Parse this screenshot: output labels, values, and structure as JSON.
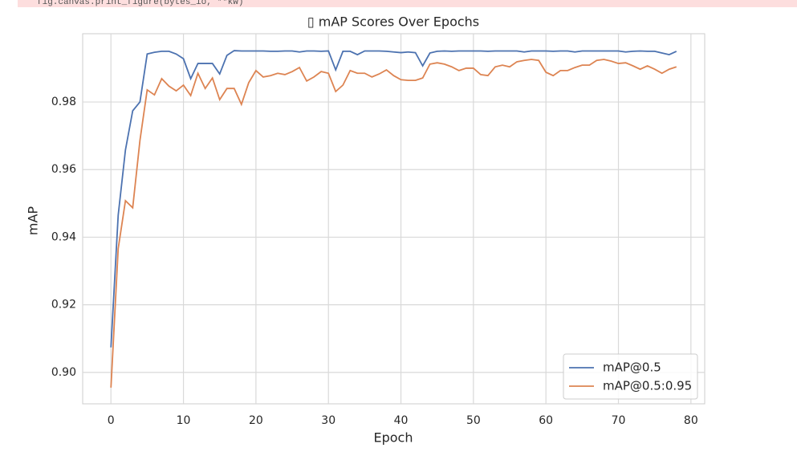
{
  "code_output": "fig.canvas.print_figure(bytes_io, **kw)",
  "chart_data": {
    "type": "line",
    "title": "▯ mAP Scores Over Epochs",
    "x_label": "Epoch",
    "y_label": "mAP",
    "x": [
      0,
      1,
      2,
      3,
      4,
      5,
      6,
      7,
      8,
      9,
      10,
      11,
      12,
      13,
      14,
      15,
      16,
      17,
      18,
      19,
      20,
      21,
      22,
      23,
      24,
      25,
      26,
      27,
      28,
      29,
      30,
      31,
      32,
      33,
      34,
      35,
      36,
      37,
      38,
      39,
      40,
      41,
      42,
      43,
      44,
      45,
      46,
      47,
      48,
      49,
      50,
      51,
      52,
      53,
      54,
      55,
      56,
      57,
      58,
      59,
      60,
      61,
      62,
      63,
      64,
      65,
      66,
      67,
      68,
      69,
      70,
      71,
      72,
      73,
      74,
      75,
      76,
      77,
      78
    ],
    "series": [
      {
        "name": "mAP@0.5",
        "color": "#4c72b0",
        "values": [
          0.9074,
          0.9465,
          0.9658,
          0.9774,
          0.98,
          0.9942,
          0.9947,
          0.995,
          0.995,
          0.9942,
          0.9928,
          0.9869,
          0.9914,
          0.9914,
          0.9914,
          0.9883,
          0.9938,
          0.9952,
          0.9951,
          0.9951,
          0.9951,
          0.9951,
          0.995,
          0.995,
          0.9951,
          0.9951,
          0.9948,
          0.9951,
          0.9951,
          0.995,
          0.9951,
          0.9895,
          0.995,
          0.995,
          0.994,
          0.9951,
          0.9951,
          0.9951,
          0.995,
          0.9948,
          0.9946,
          0.9948,
          0.9946,
          0.9907,
          0.9945,
          0.995,
          0.9951,
          0.995,
          0.9951,
          0.9951,
          0.9951,
          0.9951,
          0.995,
          0.9951,
          0.9951,
          0.9951,
          0.9951,
          0.9948,
          0.9951,
          0.9951,
          0.9951,
          0.995,
          0.9951,
          0.9951,
          0.9948,
          0.9951,
          0.9951,
          0.9951,
          0.9951,
          0.9951,
          0.9951,
          0.9948,
          0.995,
          0.9951,
          0.995,
          0.995,
          0.9945,
          0.994,
          0.995
        ]
      },
      {
        "name": "mAP@0.5:0.95",
        "color": "#dd8452",
        "values": [
          0.8955,
          0.9366,
          0.9508,
          0.9487,
          0.9686,
          0.9836,
          0.9821,
          0.9869,
          0.9847,
          0.9833,
          0.985,
          0.9819,
          0.9885,
          0.984,
          0.9871,
          0.9807,
          0.984,
          0.984,
          0.9793,
          0.9857,
          0.9893,
          0.9874,
          0.9878,
          0.9885,
          0.9881,
          0.989,
          0.9902,
          0.9862,
          0.9874,
          0.989,
          0.9885,
          0.9831,
          0.985,
          0.9893,
          0.9885,
          0.9885,
          0.9874,
          0.9883,
          0.9895,
          0.9878,
          0.9866,
          0.9864,
          0.9864,
          0.9871,
          0.9912,
          0.9916,
          0.9912,
          0.9904,
          0.9893,
          0.99,
          0.99,
          0.9881,
          0.9878,
          0.9904,
          0.9909,
          0.9904,
          0.9919,
          0.9923,
          0.9926,
          0.9923,
          0.9888,
          0.9878,
          0.9893,
          0.9893,
          0.9902,
          0.9909,
          0.9909,
          0.9923,
          0.9926,
          0.9921,
          0.9914,
          0.9916,
          0.9907,
          0.9897,
          0.9907,
          0.9897,
          0.9885,
          0.9897,
          0.9904
        ]
      }
    ],
    "xlim": [
      -3.9,
      81.9
    ],
    "xticks": [
      0,
      10,
      20,
      30,
      40,
      50,
      60,
      70,
      80
    ],
    "ylim": [
      0.8907,
      1.0002
    ],
    "yticks": [
      {
        "value": 0.9,
        "label": "0.90"
      },
      0.92,
      0.94,
      0.96,
      0.98
    ],
    "grid": true,
    "legend": "lower right"
  }
}
